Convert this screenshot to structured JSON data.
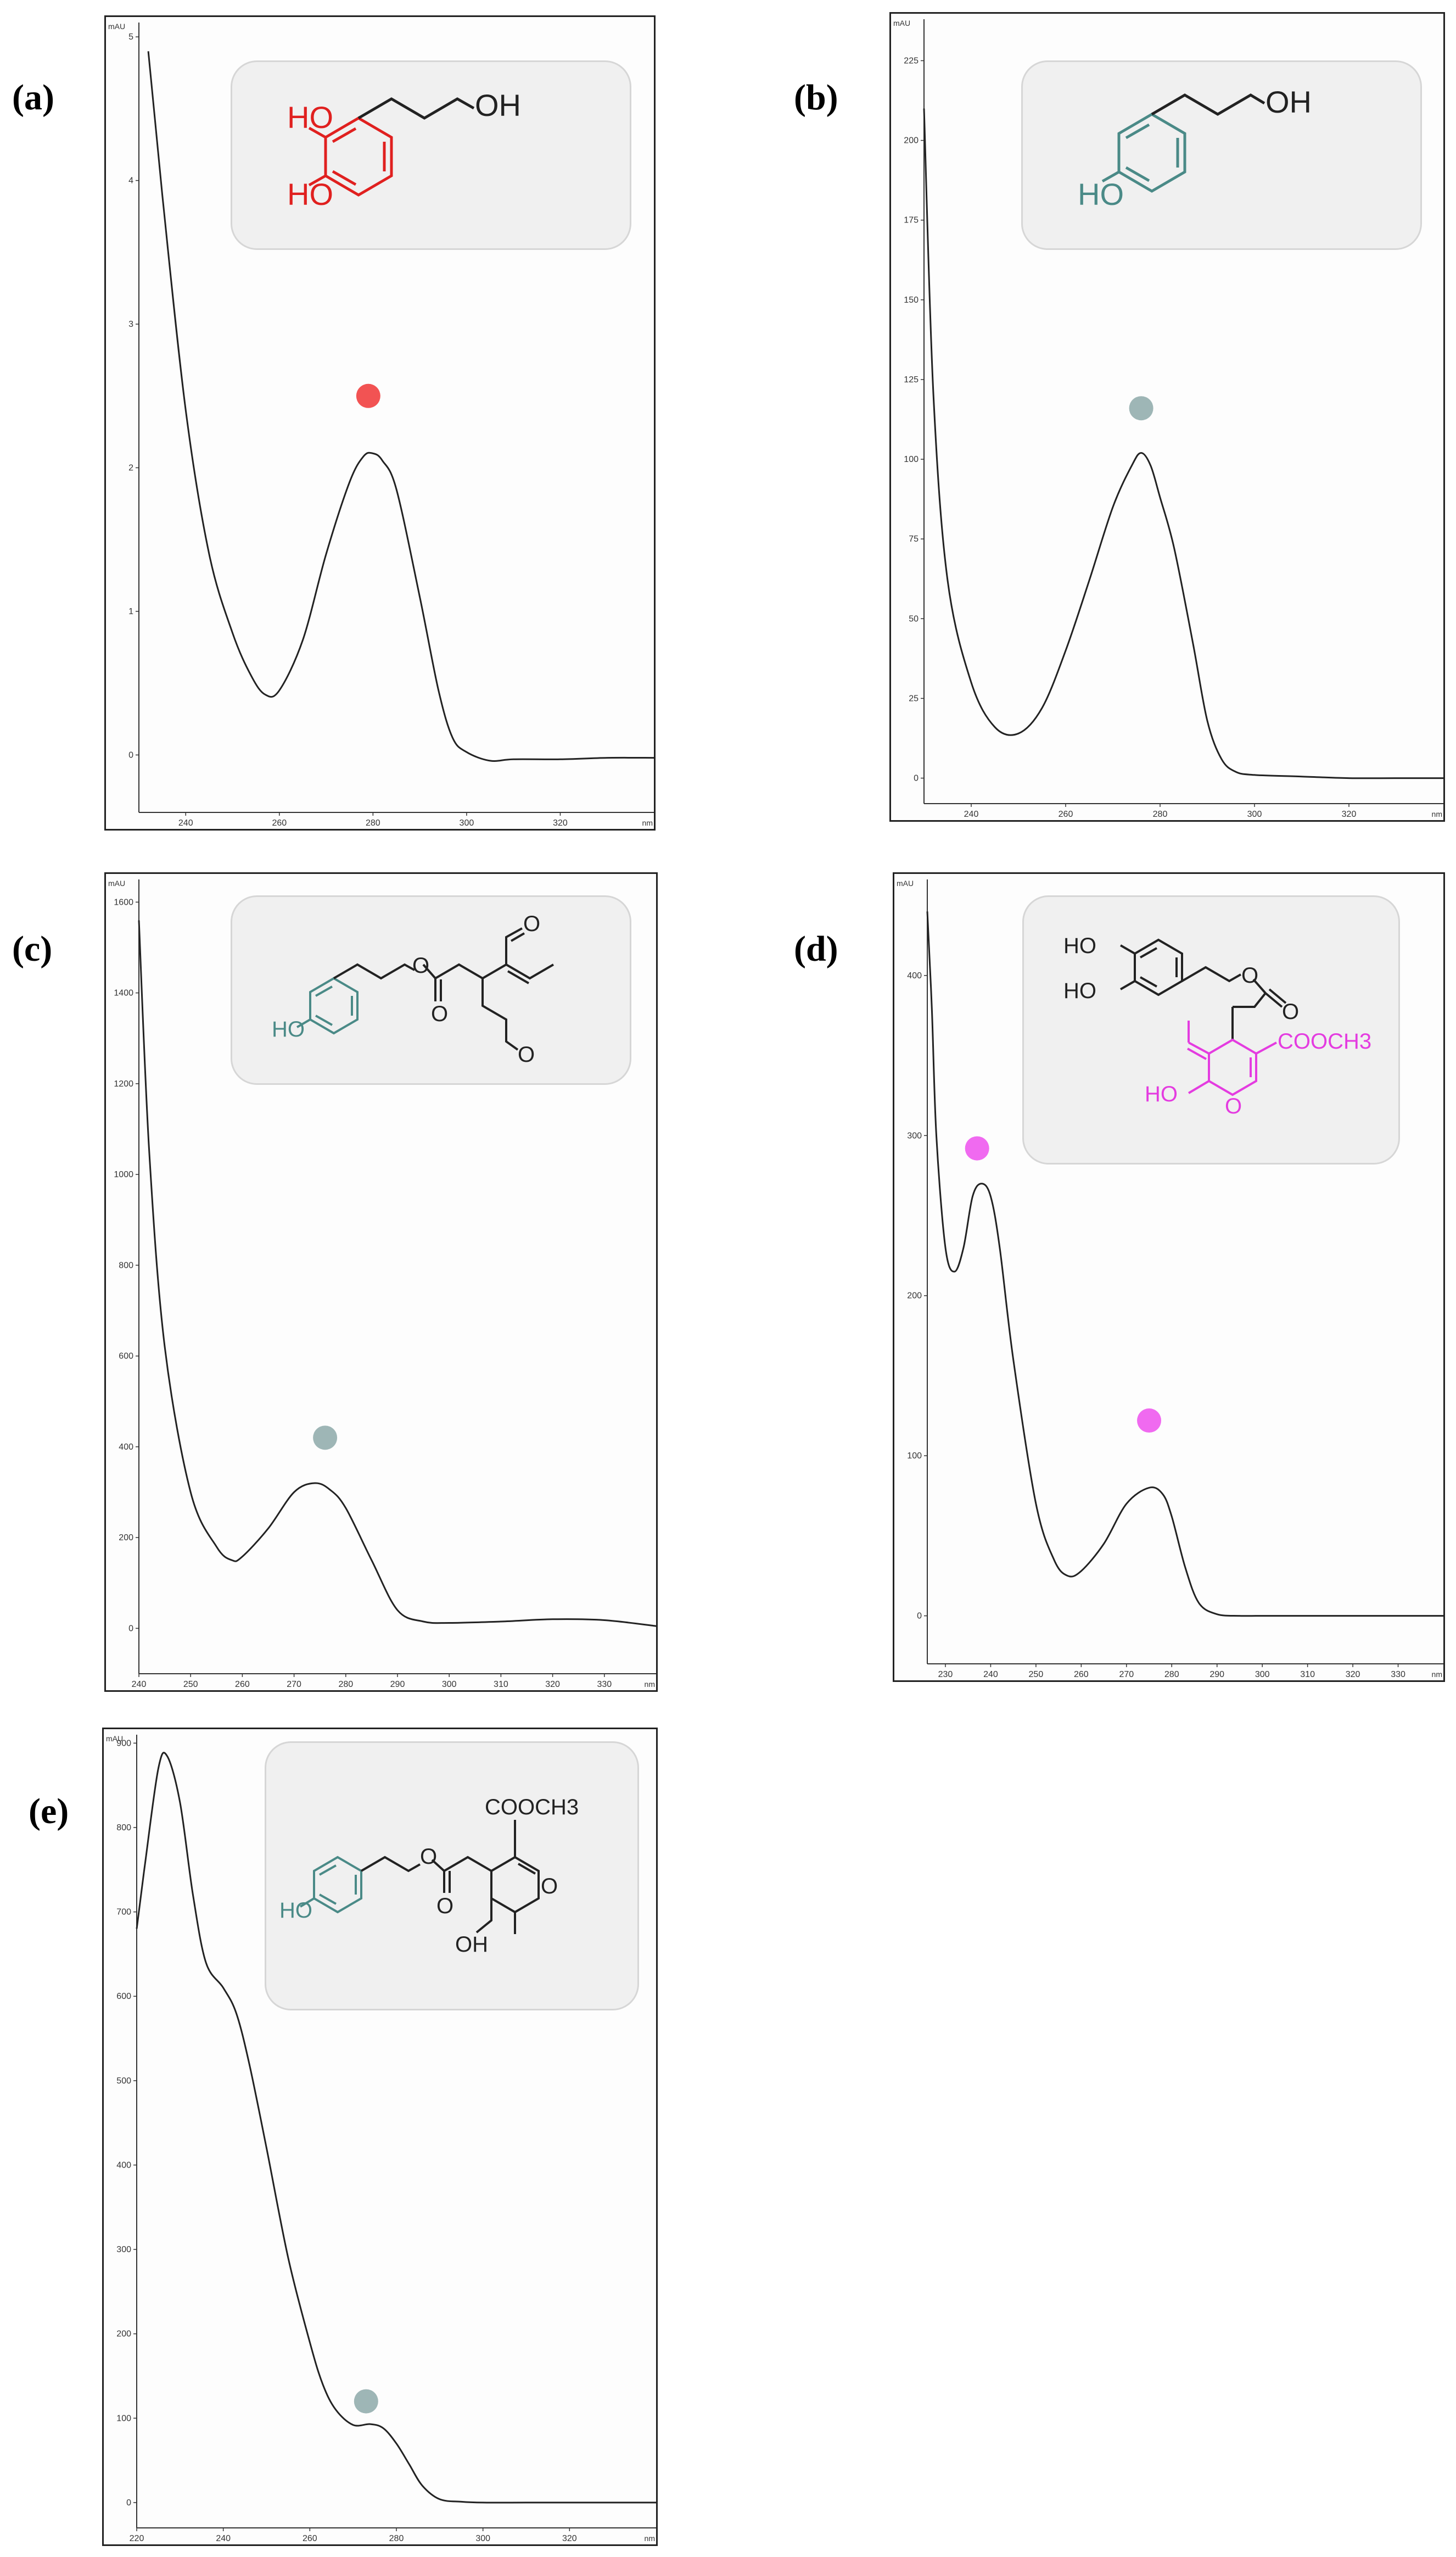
{
  "colors": {
    "catechol_red": "#e0201f",
    "tyrosol_teal": "#4a8a87",
    "elenolic_magenta": "#e43ce0",
    "dot_red": "#f25353",
    "dot_grey": "#9eb6b6",
    "dot_magenta": "#f06af0",
    "trace": "#222222"
  },
  "panels": [
    {
      "label": "(a)"
    },
    {
      "label": "(b)"
    },
    {
      "label": "(c)"
    },
    {
      "label": "(d)"
    },
    {
      "label": "(e)"
    }
  ],
  "structures": {
    "a": {
      "ho1": "HO",
      "ho2": "HO",
      "oh": "OH"
    },
    "b": {
      "ho": "HO",
      "oh": "OH"
    },
    "c": {
      "ho": "HO",
      "o1": "O",
      "o2": "O",
      "o3": "O",
      "o4": "O"
    },
    "d": {
      "ho1": "HO",
      "ho2": "HO",
      "o_ester": "O",
      "o_carbonyl": "O",
      "cooch3": "COOCH3",
      "ho_ring": "HO",
      "o_ring": "O"
    },
    "e": {
      "ho": "HO",
      "o_ester": "O",
      "o_carbonyl": "O",
      "cooch3": "COOCH3",
      "oh": "OH",
      "o_ring": "O"
    }
  },
  "chart_data": [
    {
      "type": "line",
      "panel": "(a)",
      "ylabel": "mAU",
      "xlim": [
        230,
        340
      ],
      "ylim": [
        -0.4,
        5.1
      ],
      "yticks": [
        "0",
        "1",
        "2",
        "3",
        "4",
        "5"
      ],
      "xticks": [
        "240",
        "260",
        "280",
        "300",
        "320"
      ],
      "xunit": "nm",
      "x": [
        232,
        235,
        240,
        245,
        250,
        254,
        257,
        260,
        265,
        270,
        275,
        278,
        280,
        282,
        285,
        290,
        294,
        297,
        300,
        305,
        310,
        320,
        330,
        340
      ],
      "y": [
        4.9,
        3.9,
        2.4,
        1.4,
        0.85,
        0.55,
        0.42,
        0.45,
        0.8,
        1.4,
        1.9,
        2.08,
        2.1,
        2.05,
        1.85,
        1.1,
        0.45,
        0.12,
        0.02,
        -0.04,
        -0.03,
        -0.03,
        -0.02,
        -0.02
      ],
      "markers": [
        {
          "x": 279,
          "y": 2.5,
          "color": "#f25353"
        }
      ]
    },
    {
      "type": "line",
      "panel": "(b)",
      "ylabel": "mAU",
      "xlim": [
        230,
        340
      ],
      "ylim": [
        -8,
        238
      ],
      "yticks": [
        "0",
        "25",
        "50",
        "75",
        "100",
        "125",
        "150",
        "175",
        "200",
        "225"
      ],
      "xticks": [
        "240",
        "260",
        "280",
        "300",
        "320"
      ],
      "xunit": "nm",
      "x": [
        230,
        232,
        235,
        240,
        245,
        250,
        255,
        260,
        265,
        270,
        274,
        276,
        278,
        280,
        283,
        287,
        290,
        293,
        296,
        300,
        310,
        320,
        330,
        340
      ],
      "y": [
        210,
        120,
        62,
        30,
        16,
        14,
        22,
        40,
        62,
        85,
        98,
        102,
        98,
        88,
        72,
        42,
        18,
        6,
        2,
        1,
        0.5,
        0,
        0,
        0
      ],
      "markers": [
        {
          "x": 276,
          "y": 116,
          "color": "#9eb6b6"
        }
      ]
    },
    {
      "type": "line",
      "panel": "(c)",
      "ylabel": "mAU",
      "xlim": [
        240,
        340
      ],
      "ylim": [
        -100,
        1650
      ],
      "yticks": [
        "0",
        "200",
        "400",
        "600",
        "800",
        "1000",
        "1200",
        "1400",
        "1600"
      ],
      "xticks": [
        "240",
        "250",
        "260",
        "270",
        "280",
        "290",
        "300",
        "310",
        "320",
        "330"
      ],
      "xunit": "nm",
      "x": [
        240,
        242,
        245,
        250,
        255,
        258,
        260,
        265,
        270,
        274,
        277,
        280,
        285,
        290,
        295,
        300,
        310,
        320,
        330,
        340
      ],
      "y": [
        1560,
        1050,
        620,
        300,
        180,
        150,
        158,
        220,
        300,
        320,
        305,
        265,
        150,
        40,
        15,
        12,
        15,
        20,
        18,
        5
      ],
      "markers": [
        {
          "x": 276,
          "y": 420,
          "color": "#9eb6b6"
        }
      ]
    },
    {
      "type": "line",
      "panel": "(d)",
      "ylabel": "mAU",
      "xlim": [
        226,
        340
      ],
      "ylim": [
        -30,
        460
      ],
      "yticks": [
        "0",
        "100",
        "200",
        "300",
        "400"
      ],
      "xticks": [
        "230",
        "240",
        "250",
        "260",
        "270",
        "280",
        "290",
        "300",
        "310",
        "320",
        "330"
      ],
      "xunit": "nm",
      "x": [
        226,
        227,
        228,
        230,
        232,
        234,
        236,
        238,
        240,
        242,
        245,
        250,
        254,
        257,
        260,
        265,
        270,
        275,
        278,
        280,
        283,
        286,
        290,
        295,
        300,
        310,
        320,
        340
      ],
      "y": [
        440,
        380,
        300,
        230,
        215,
        230,
        262,
        270,
        262,
        230,
        160,
        70,
        35,
        25,
        28,
        45,
        70,
        80,
        76,
        62,
        30,
        8,
        1,
        0,
        0,
        0,
        0,
        0
      ],
      "markers": [
        {
          "x": 237,
          "y": 292,
          "color": "#f06af0"
        },
        {
          "x": 275,
          "y": 122,
          "color": "#f06af0"
        }
      ]
    },
    {
      "type": "line",
      "panel": "(e)",
      "ylabel": "mAU",
      "xlim": [
        220,
        340
      ],
      "ylim": [
        -30,
        910
      ],
      "yticks": [
        "0",
        "100",
        "200",
        "300",
        "400",
        "500",
        "600",
        "700",
        "800",
        "900"
      ],
      "xticks": [
        "220",
        "240",
        "260",
        "280",
        "300",
        "320"
      ],
      "xunit": "nm",
      "x": [
        220,
        222,
        225,
        227,
        230,
        233,
        236,
        240,
        243,
        246,
        250,
        255,
        260,
        263,
        266,
        270,
        274,
        277,
        280,
        283,
        286,
        290,
        295,
        300,
        310,
        320,
        340
      ],
      "y": [
        680,
        760,
        870,
        885,
        830,
        720,
        640,
        610,
        580,
        520,
        420,
        290,
        190,
        140,
        110,
        92,
        93,
        88,
        70,
        45,
        20,
        4,
        1,
        0,
        0,
        0,
        0
      ],
      "markers": [
        {
          "x": 273,
          "y": 120,
          "color": "#9eb6b6"
        }
      ]
    }
  ]
}
